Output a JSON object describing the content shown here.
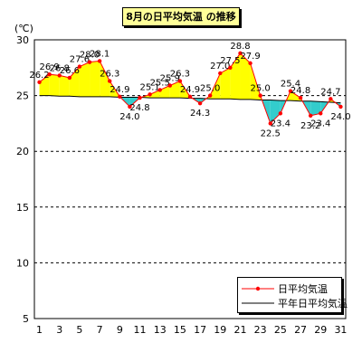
{
  "chart_data": {
    "type": "line",
    "title": "8月の日平均気温 の推移",
    "unit": "(℃)",
    "x": [
      1,
      2,
      3,
      4,
      5,
      6,
      7,
      8,
      9,
      10,
      11,
      12,
      13,
      14,
      15,
      16,
      17,
      18,
      19,
      20,
      21,
      22,
      23,
      24,
      25,
      26,
      27,
      28,
      29,
      30,
      31
    ],
    "x_ticks": [
      1,
      3,
      5,
      7,
      9,
      11,
      13,
      15,
      17,
      19,
      21,
      23,
      25,
      27,
      29,
      31
    ],
    "ylim": [
      5,
      30
    ],
    "y_ticks": [
      5,
      10,
      15,
      20,
      25,
      30
    ],
    "series": [
      {
        "name": "日平均気温",
        "values": [
          26.2,
          26.9,
          26.8,
          26.6,
          27.6,
          28.0,
          28.1,
          26.3,
          24.9,
          24.0,
          24.8,
          25.1,
          25.5,
          25.9,
          26.3,
          24.9,
          24.3,
          25.0,
          27.0,
          27.5,
          28.8,
          27.9,
          25.0,
          22.5,
          23.4,
          25.4,
          24.8,
          23.2,
          23.4,
          24.7,
          24.0
        ],
        "color": "#ff0000"
      },
      {
        "name": "平年日平均気温",
        "values": [
          25.0,
          25.0,
          24.95,
          24.95,
          24.9,
          24.9,
          24.9,
          24.9,
          24.85,
          24.85,
          24.85,
          24.8,
          24.8,
          24.8,
          24.8,
          24.75,
          24.75,
          24.7,
          24.7,
          24.7,
          24.65,
          24.65,
          24.6,
          24.6,
          24.55,
          24.55,
          24.5,
          24.5,
          24.45,
          24.4,
          24.35
        ],
        "color": "#000000"
      }
    ],
    "fill_above_color": "#ffff00",
    "fill_below_color": "#33cccc",
    "grid": true,
    "legend_position": "bottom-right"
  }
}
